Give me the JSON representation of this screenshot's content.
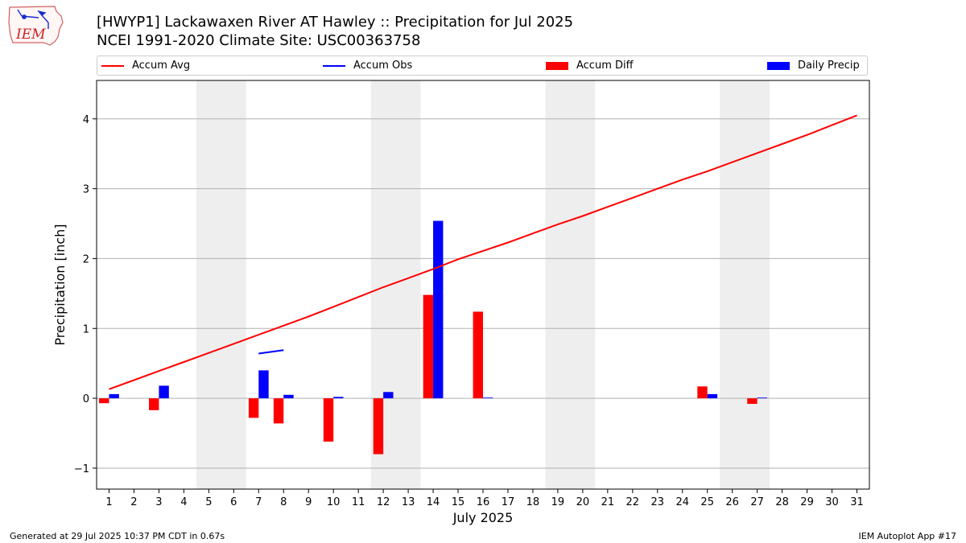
{
  "logo": {
    "text": "IEM"
  },
  "footer": {
    "generated": "Generated at 29 Jul 2025 10:37 PM CDT in 0.67s",
    "app": "IEM Autoplot App #17"
  },
  "colors": {
    "accum_avg": "#ff0000",
    "accum_obs": "#0000ff",
    "accum_diff": "#ff0000",
    "daily_precip": "#0000ff",
    "weekend": "#eeeeee",
    "grid": "#b0b0b0"
  },
  "chart_data": {
    "type": "bar",
    "title": "[HWYP1] Lackawaxen River  AT Hawley :: Precipitation for Jul 2025",
    "subtitle": "NCEI 1991-2020 Climate Site: USC00363758",
    "xlabel": "July 2025",
    "ylabel": "Precipitation [inch]",
    "ylim": [
      -1.3,
      4.55
    ],
    "xlim": [
      0.5,
      31.5
    ],
    "yticks": [
      {
        "value": -1,
        "label": "−1"
      },
      {
        "value": 0,
        "label": "0"
      },
      {
        "value": 1,
        "label": "1"
      },
      {
        "value": 2,
        "label": "2"
      },
      {
        "value": 3,
        "label": "3"
      },
      {
        "value": 4,
        "label": "4"
      }
    ],
    "days": [
      1,
      2,
      3,
      4,
      5,
      6,
      7,
      8,
      9,
      10,
      11,
      12,
      13,
      14,
      15,
      16,
      17,
      18,
      19,
      20,
      21,
      22,
      23,
      24,
      25,
      26,
      27,
      28,
      29,
      30,
      31
    ],
    "grid": "horizontal",
    "legend_position": "top",
    "weekends": [
      [
        5,
        6
      ],
      [
        12,
        13
      ],
      [
        19,
        20
      ],
      [
        26,
        27
      ]
    ],
    "legend": [
      "Accum Avg",
      "Accum Obs",
      "Accum Diff",
      "Daily Precip"
    ],
    "series": [
      {
        "name": "Accum Avg",
        "type": "line",
        "x": [
          1,
          2,
          3,
          4,
          5,
          6,
          7,
          8,
          9,
          10,
          11,
          12,
          13,
          14,
          15,
          16,
          17,
          18,
          19,
          20,
          21,
          22,
          23,
          24,
          25,
          26,
          27,
          28,
          29,
          30,
          31
        ],
        "values": [
          0.13,
          0.26,
          0.39,
          0.52,
          0.65,
          0.78,
          0.91,
          1.04,
          1.17,
          1.31,
          1.45,
          1.59,
          1.72,
          1.85,
          1.99,
          2.11,
          2.23,
          2.36,
          2.49,
          2.61,
          2.74,
          2.87,
          3.0,
          3.13,
          3.25,
          3.38,
          3.51,
          3.64,
          3.77,
          3.91,
          4.05
        ]
      },
      {
        "name": "Accum Obs",
        "type": "line",
        "x": [
          7,
          8
        ],
        "values": [
          0.64,
          0.69
        ]
      },
      {
        "name": "Accum Diff",
        "type": "bar",
        "x": [
          1,
          3,
          7,
          8,
          10,
          12,
          14,
          16,
          25,
          27
        ],
        "values": [
          -0.07,
          -0.17,
          -0.28,
          -0.36,
          -0.62,
          -0.8,
          1.48,
          1.24,
          0.17,
          -0.08
        ]
      },
      {
        "name": "Daily Precip",
        "type": "bar",
        "x": [
          1,
          3,
          7,
          8,
          10,
          12,
          14,
          16,
          25,
          27
        ],
        "values": [
          0.06,
          0.18,
          0.4,
          0.05,
          0.02,
          0.09,
          2.54,
          0.01,
          0.06,
          0.01
        ]
      }
    ]
  }
}
